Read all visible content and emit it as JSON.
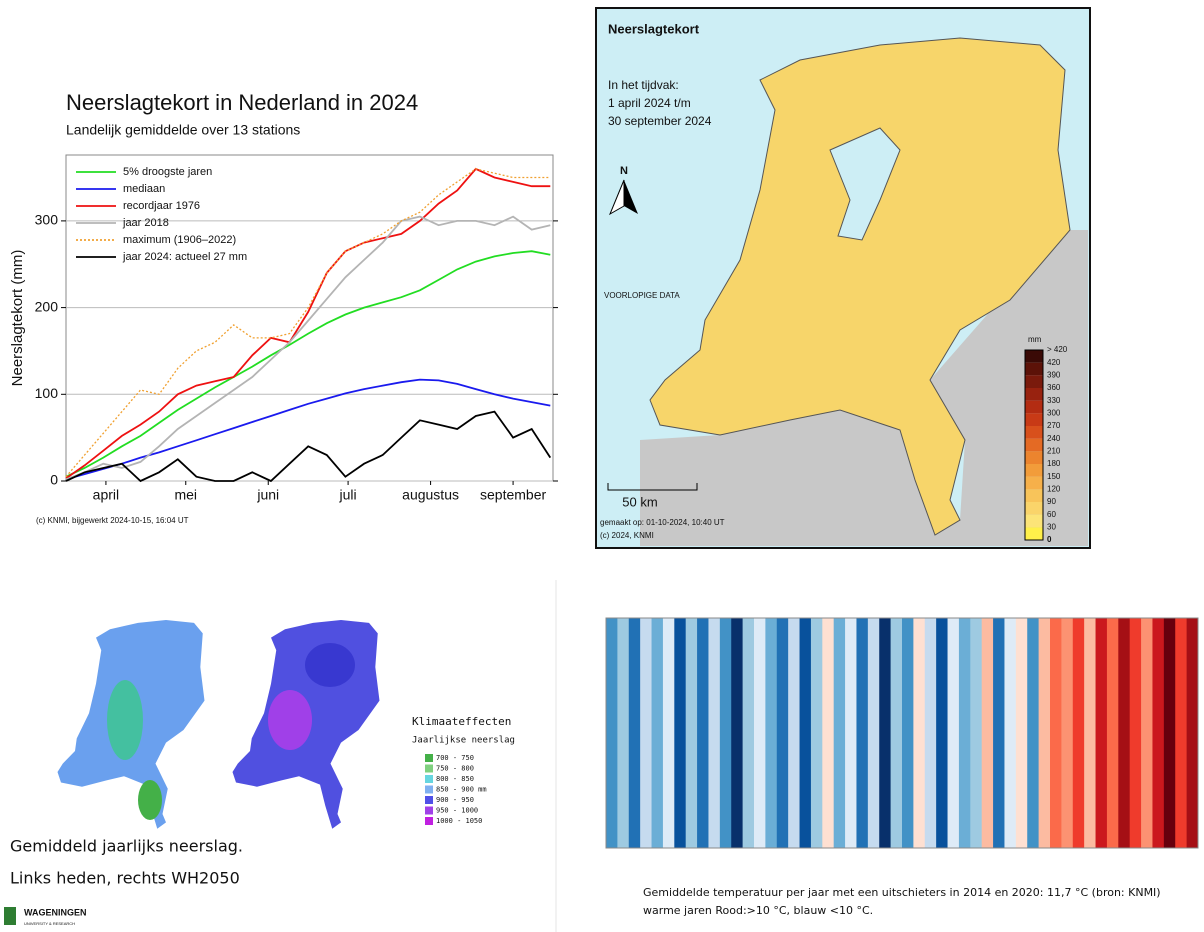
{
  "chart_data": {
    "type": "line",
    "title": "Neerslagtekort in Nederland in 2024",
    "subtitle": "Landelijk gemiddelde over 13 stations",
    "ylabel": "Neerslagtekort (mm)",
    "footer": "(c) KNMI, bijgewerkt 2024-10-15, 16:04 UT",
    "x": [
      0,
      7,
      14,
      21,
      28,
      35,
      42,
      49,
      56,
      63,
      70,
      77,
      84,
      91,
      98,
      105,
      112,
      119,
      126,
      133,
      140,
      147,
      154,
      161,
      168,
      175,
      182
    ],
    "xlim": [
      0,
      183
    ],
    "xticks": [
      {
        "value": 15,
        "label": "april"
      },
      {
        "value": 45,
        "label": "mei"
      },
      {
        "value": 76,
        "label": "juni"
      },
      {
        "value": 106,
        "label": "juli"
      },
      {
        "value": 137,
        "label": "augustus"
      },
      {
        "value": 168,
        "label": "september"
      }
    ],
    "ylim": [
      0,
      376
    ],
    "yticks": [
      0,
      100,
      200,
      300
    ],
    "grid": true,
    "series": [
      {
        "name": "5% droogste jaren",
        "color": "#22dd22",
        "style": "solid",
        "values": [
          5,
          15,
          27,
          40,
          52,
          67,
          82,
          95,
          108,
          120,
          132,
          145,
          157,
          170,
          182,
          192,
          200,
          206,
          212,
          220,
          232,
          244,
          253,
          259,
          263,
          265,
          261
        ]
      },
      {
        "name": "mediaan",
        "color": "#1a1aee",
        "style": "solid",
        "values": [
          2,
          8,
          14,
          20,
          27,
          33,
          40,
          47,
          54,
          61,
          68,
          75,
          82,
          89,
          95,
          101,
          106,
          110,
          114,
          117,
          116,
          112,
          106,
          100,
          95,
          91,
          87
        ]
      },
      {
        "name": "recordjaar 1976",
        "color": "#ee1111",
        "style": "solid",
        "values": [
          3,
          18,
          35,
          52,
          65,
          80,
          100,
          110,
          115,
          120,
          145,
          165,
          160,
          195,
          240,
          265,
          275,
          280,
          285,
          300,
          320,
          335,
          360,
          350,
          345,
          340,
          340
        ]
      },
      {
        "name": "jaar 2018",
        "color": "#b4b4b4",
        "style": "solid",
        "values": [
          2,
          10,
          20,
          15,
          22,
          40,
          60,
          75,
          90,
          105,
          120,
          140,
          160,
          185,
          210,
          235,
          255,
          275,
          300,
          305,
          295,
          300,
          300,
          295,
          305,
          290,
          295
        ]
      },
      {
        "name": "maximum (1906–2022)",
        "color": "#f0a030",
        "style": "dotted",
        "values": [
          5,
          30,
          55,
          80,
          105,
          100,
          130,
          150,
          160,
          180,
          165,
          165,
          170,
          200,
          240,
          265,
          275,
          285,
          300,
          310,
          330,
          345,
          360,
          355,
          350,
          350,
          350
        ]
      },
      {
        "name": "jaar 2024: actueel 27 mm",
        "color": "#000000",
        "style": "solid",
        "values": [
          0,
          10,
          15,
          20,
          0,
          10,
          25,
          5,
          0,
          0,
          10,
          0,
          20,
          40,
          30,
          5,
          20,
          30,
          50,
          70,
          65,
          60,
          75,
          80,
          50,
          60,
          27
        ]
      }
    ]
  },
  "map": {
    "title": "Neerslagtekort",
    "period": [
      "In het tijdvak:",
      "1 april 2024 t/m",
      "30 september 2024"
    ],
    "north": "N",
    "note": "VOORLOPIGE DATA",
    "scale": "50 km",
    "made": "gemaakt op: 01-10-2024, 10:40 UT",
    "copyright": "(c) 2024, KNMI",
    "unit": "mm",
    "legend_labels": [
      "> 420",
      "420",
      "390",
      "360",
      "330",
      "300",
      "270",
      "240",
      "210",
      "180",
      "150",
      "120",
      "90",
      "60",
      "30",
      "0"
    ],
    "legend_colors": [
      "#3a0a06",
      "#5c1208",
      "#7a1a0c",
      "#98220f",
      "#b32c12",
      "#c83a16",
      "#d8501c",
      "#e46a24",
      "#ec842e",
      "#f29c3a",
      "#f6b04a",
      "#f8c45a",
      "#fad46a",
      "#fce478",
      "#fff04a"
    ]
  },
  "rain": {
    "title": "Klimaateffecten",
    "subtitle": "Jaarlijkse neerslag",
    "legend": [
      {
        "label": "700 - 750",
        "color": "#44b048"
      },
      {
        "label": "750 - 800",
        "color": "#7fd07f"
      },
      {
        "label": "800 - 850",
        "color": "#66d6e0"
      },
      {
        "label": "850 - 900 mm",
        "color": "#7fb0f0"
      },
      {
        "label": "900 - 950",
        "color": "#5050e8"
      },
      {
        "label": "950 - 1000",
        "color": "#a040e8"
      },
      {
        "label": "1000 - 1050",
        "color": "#c020e0"
      }
    ],
    "caption": [
      "Gemiddeld jaarlijks neerslag.",
      "Links heden, rechts WH2050"
    ],
    "logo": "WAGENINGEN",
    "logo_sub": "UNIVERSITY & RESEARCH"
  },
  "stripes": {
    "colors": [
      "#4292c6",
      "#9ecae1",
      "#2171b5",
      "#c6dbef",
      "#6baed6",
      "#deebf7",
      "#08519c",
      "#9ecae1",
      "#2171b5",
      "#c6dbef",
      "#4292c6",
      "#08306b",
      "#9ecae1",
      "#deebf7",
      "#6baed6",
      "#2171b5",
      "#c6dbef",
      "#08519c",
      "#9ecae1",
      "#fee0d2",
      "#6baed6",
      "#deebf7",
      "#2171b5",
      "#c6dbef",
      "#08306b",
      "#9ecae1",
      "#4292c6",
      "#fee0d2",
      "#c6dbef",
      "#08519c",
      "#deebf7",
      "#6baed6",
      "#9ecae1",
      "#fcbba1",
      "#2171b5",
      "#deebf7",
      "#fee0d2",
      "#4292c6",
      "#fcbba1",
      "#fb6a4a",
      "#fc9272",
      "#ef3b2c",
      "#fcbba1",
      "#cb181d",
      "#fb6a4a",
      "#a50f15",
      "#ef3b2c",
      "#fc9272",
      "#cb181d",
      "#67000d",
      "#ef3b2c",
      "#a50f15"
    ],
    "caption": [
      "Gemiddelde temperatuur per jaar met een uitschieters in 2014 en 2020: 11,7 °C  (bron: KNMI)",
      "warme jaren Rood:>10 °C, blauw <10 °C."
    ]
  }
}
